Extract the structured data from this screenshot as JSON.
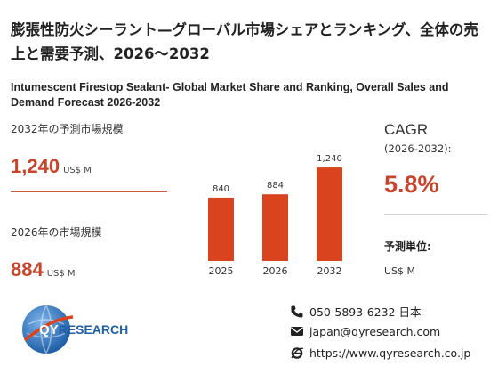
{
  "header": {
    "title_jp": "膨張性防火シーラント—グローバル市場シェアとランキング、全体の売上と需要予測、2026～2032",
    "title_en": "Intumescent Firestop Sealant- Global Market Share and Ranking, Overall Sales and Demand Forecast 2026-2032"
  },
  "stats": {
    "y2032_label": "2032年の予測市場規模",
    "y2032_value": "1,240",
    "y2032_unit": "US$ M",
    "y2026_label": "2026年の市場規模",
    "y2026_value": "884",
    "y2026_unit": "US$ M"
  },
  "cagr": {
    "label": "CAGR",
    "period": "(2026-2032):",
    "value": "5.8%"
  },
  "unit_info": {
    "label": "予測単位:",
    "value": "US$ M"
  },
  "chart_data": {
    "type": "bar",
    "categories": [
      "2025",
      "2026",
      "2032"
    ],
    "values": [
      840,
      884,
      1240
    ],
    "value_labels": [
      "840",
      "884",
      "1,240"
    ],
    "bar_color": "#d9431e",
    "ylim": [
      0,
      1300
    ]
  },
  "logo": {
    "brand_qy": "QY",
    "brand_rest": "RESEARCH"
  },
  "contact": {
    "phone": "050-5893-6232 日本",
    "email": "japan@qyresearch.com",
    "website": "https://www.qyresearch.co.jp"
  },
  "colors": {
    "accent": "#c8442a",
    "logo_blue": "#1f5fa8"
  }
}
